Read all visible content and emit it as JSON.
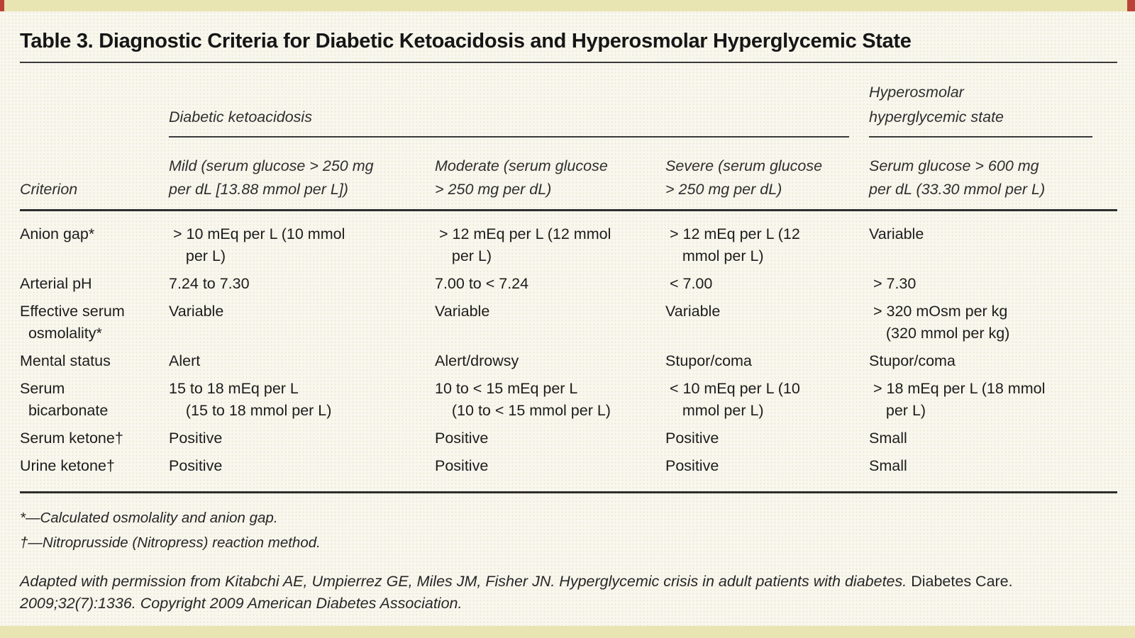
{
  "page": {
    "title": "Table 3. Diagnostic Criteria for Diabetic Ketoacidosis and Hyperosmolar Hyperglycemic State"
  },
  "colors": {
    "accent_band": "#e9e5b2",
    "accent_red": "#bb4238",
    "background": "#f8f7ef",
    "rule": "#2e2e2e"
  },
  "table": {
    "group_headers": {
      "dka": "Diabetic ketoacidosis",
      "hhs": [
        "Hyperosmolar",
        "hyperglycemic state"
      ]
    },
    "column_headers": {
      "criterion": "Criterion",
      "mild": [
        "Mild (serum glucose > 250 mg",
        "per dL [13.88 mmol per L])"
      ],
      "moderate": [
        "Moderate (serum glucose",
        "> 250 mg per dL)"
      ],
      "severe": [
        "Severe (serum glucose",
        "> 250 mg per dL)"
      ],
      "hhs": [
        "Serum glucose > 600 mg",
        "per dL (33.30 mmol per L)"
      ]
    },
    "rows": [
      {
        "criterion": [
          "Anion gap*"
        ],
        "mild": [
          " > 10 mEq per L (10 mmol",
          "    per L)"
        ],
        "moderate": [
          " > 12 mEq per L (12 mmol",
          "    per L)"
        ],
        "severe": [
          " > 12 mEq per L (12",
          "    mmol per L)"
        ],
        "hhs": [
          "Variable"
        ]
      },
      {
        "criterion": [
          "Arterial pH"
        ],
        "mild": [
          "7.24 to 7.30"
        ],
        "moderate": [
          "7.00 to < 7.24"
        ],
        "severe": [
          " < 7.00"
        ],
        "hhs": [
          " > 7.30"
        ]
      },
      {
        "criterion": [
          "Effective serum",
          "  osmolality*"
        ],
        "mild": [
          "Variable"
        ],
        "moderate": [
          "Variable"
        ],
        "severe": [
          "Variable"
        ],
        "hhs": [
          " > 320 mOsm per kg",
          "    (320 mmol per kg)"
        ]
      },
      {
        "criterion": [
          "Mental status"
        ],
        "mild": [
          "Alert"
        ],
        "moderate": [
          "Alert/drowsy"
        ],
        "severe": [
          "Stupor/coma"
        ],
        "hhs": [
          "Stupor/coma"
        ]
      },
      {
        "criterion": [
          "Serum",
          "  bicarbonate"
        ],
        "mild": [
          "15 to 18 mEq per L",
          "    (15 to 18 mmol per L)"
        ],
        "moderate": [
          "10 to < 15 mEq per L",
          "    (10 to < 15 mmol per L)"
        ],
        "severe": [
          " < 10 mEq per L (10",
          "    mmol per L)"
        ],
        "hhs": [
          " > 18 mEq per L (18 mmol",
          "    per L)"
        ]
      },
      {
        "criterion": [
          "Serum ketone†"
        ],
        "mild": [
          "Positive"
        ],
        "moderate": [
          "Positive"
        ],
        "severe": [
          "Positive"
        ],
        "hhs": [
          "Small"
        ]
      },
      {
        "criterion": [
          "Urine ketone†"
        ],
        "mild": [
          "Positive"
        ],
        "moderate": [
          "Positive"
        ],
        "severe": [
          "Positive"
        ],
        "hhs": [
          "Small"
        ]
      }
    ],
    "footnotes": [
      "*—Calculated osmolality and anion gap.",
      "†—Nitroprusside (Nitropress) reaction method."
    ],
    "attribution": {
      "line1_italic": "Adapted with permission from Kitabchi AE, Umpierrez GE, Miles JM, Fisher JN. Hyperglycemic crisis in adult patients with diabetes.",
      "line1_roman": " Diabetes Care.",
      "line2_italic": "2009;32(7):1336. Copyright 2009 American Diabetes Association."
    }
  }
}
